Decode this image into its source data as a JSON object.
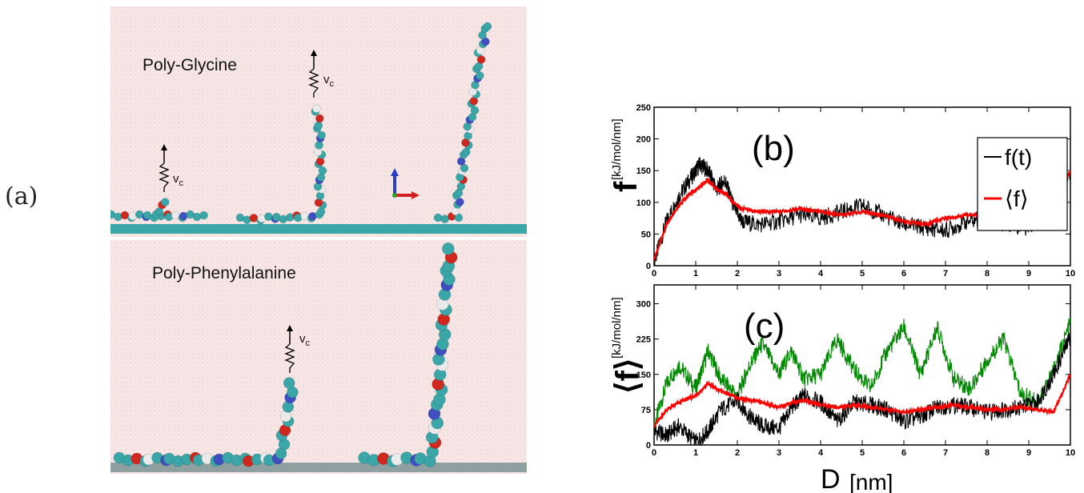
{
  "figure": {
    "panel_a_label": "(a)",
    "panel_b_label": "(b)",
    "panel_c_label": "(c)"
  },
  "simulation": {
    "top_title": "Poly-Glycine",
    "bottom_title": "Poly-Phenylalanine",
    "velocity_label": "v",
    "velocity_subscript": "c",
    "atom_colors": {
      "carbon": "#3aa6a8",
      "oxygen": "#d0281e",
      "nitrogen": "#3f4fbf",
      "hydrogen": "#eaeaea"
    },
    "background_color": "#f7e6e6"
  },
  "chart_data": [
    {
      "type": "line",
      "panel": "(b)",
      "ylabel": "f",
      "ylabel_unit": "[kJ/mol/nm]",
      "xlim": [
        0,
        10
      ],
      "ylim": [
        0,
        250
      ],
      "xticks": [
        "0",
        "1",
        "2",
        "3",
        "4",
        "5",
        "6",
        "7",
        "8",
        "9",
        "10"
      ],
      "yticks": [
        "0",
        "50",
        "100",
        "150",
        "200",
        "250"
      ],
      "legend": {
        "placement": "top-right",
        "entries": [
          "f(t)",
          "⟨f⟩"
        ]
      },
      "series": [
        {
          "name": "f(t)",
          "color": "#000000",
          "x": [
            0,
            0.3,
            0.6,
            0.9,
            1.1,
            1.3,
            1.5,
            1.7,
            1.9,
            2.1,
            2.5,
            3,
            3.5,
            4,
            4.5,
            5,
            5.5,
            6,
            6.5,
            7,
            7.5,
            8,
            8.5,
            9,
            9.5,
            10
          ],
          "y": [
            5,
            70,
            110,
            140,
            160,
            150,
            120,
            135,
            95,
            70,
            65,
            70,
            80,
            75,
            85,
            95,
            80,
            65,
            60,
            55,
            70,
            75,
            65,
            60,
            90,
            150
          ]
        },
        {
          "name": "⟨f⟩",
          "color": "#ff0000",
          "x": [
            0,
            0.3,
            0.6,
            0.9,
            1.1,
            1.3,
            1.5,
            1.7,
            1.9,
            2.1,
            2.5,
            3,
            3.5,
            4,
            4.5,
            5,
            5.5,
            6,
            6.5,
            7,
            7.5,
            8,
            8.5,
            9,
            9.5,
            10
          ],
          "y": [
            10,
            65,
            95,
            115,
            125,
            135,
            120,
            115,
            100,
            90,
            85,
            85,
            90,
            85,
            80,
            85,
            80,
            70,
            65,
            75,
            80,
            80,
            75,
            70,
            85,
            150
          ]
        }
      ]
    },
    {
      "type": "line",
      "panel": "(c)",
      "ylabel": "⟨f⟩",
      "ylabel_unit": "[kJ/mol/nm]",
      "xlabel": "D",
      "xlabel_unit": "[nm]",
      "xlim": [
        0,
        10
      ],
      "ylim": [
        0,
        340
      ],
      "xticks": [
        "0",
        "1",
        "2",
        "3",
        "4",
        "5",
        "6",
        "7",
        "8",
        "9",
        "10"
      ],
      "yticks": [
        "0",
        "75",
        "150",
        "225",
        "300"
      ],
      "series": [
        {
          "color": "#008800",
          "x": [
            0,
            0.3,
            0.6,
            1.0,
            1.3,
            1.6,
            2.0,
            2.3,
            2.6,
            3.0,
            3.3,
            3.6,
            4.0,
            4.4,
            4.8,
            5.2,
            5.6,
            6.0,
            6.4,
            6.8,
            7.2,
            7.6,
            8.0,
            8.4,
            8.8,
            9.2,
            9.6,
            10
          ],
          "y": [
            40,
            130,
            170,
            120,
            200,
            140,
            105,
            170,
            215,
            150,
            200,
            140,
            150,
            225,
            160,
            120,
            200,
            250,
            150,
            250,
            140,
            120,
            180,
            225,
            110,
            90,
            160,
            260
          ]
        },
        {
          "color": "#000000",
          "x": [
            0,
            0.3,
            0.6,
            1.0,
            1.3,
            1.6,
            2.0,
            2.3,
            2.6,
            3.0,
            3.3,
            3.6,
            4.0,
            4.4,
            4.8,
            5.2,
            5.6,
            6.0,
            6.4,
            6.8,
            7.2,
            7.6,
            8.0,
            8.4,
            8.8,
            9.2,
            9.6,
            10
          ],
          "y": [
            30,
            20,
            40,
            5,
            30,
            75,
            95,
            60,
            40,
            35,
            80,
            105,
            90,
            50,
            90,
            85,
            75,
            50,
            60,
            80,
            85,
            80,
            70,
            75,
            80,
            90,
            150,
            230
          ]
        },
        {
          "color": "#ff0000",
          "x": [
            0,
            0.3,
            0.6,
            1.0,
            1.3,
            1.6,
            2.0,
            2.3,
            2.6,
            3.0,
            3.3,
            3.6,
            4.0,
            4.4,
            4.8,
            5.2,
            5.6,
            6.0,
            6.4,
            6.8,
            7.2,
            7.6,
            8.0,
            8.4,
            8.8,
            9.2,
            9.6,
            10
          ],
          "y": [
            40,
            75,
            90,
            105,
            130,
            115,
            100,
            95,
            90,
            80,
            90,
            95,
            85,
            80,
            85,
            80,
            75,
            70,
            75,
            80,
            85,
            80,
            75,
            75,
            80,
            75,
            70,
            150
          ]
        }
      ]
    }
  ]
}
